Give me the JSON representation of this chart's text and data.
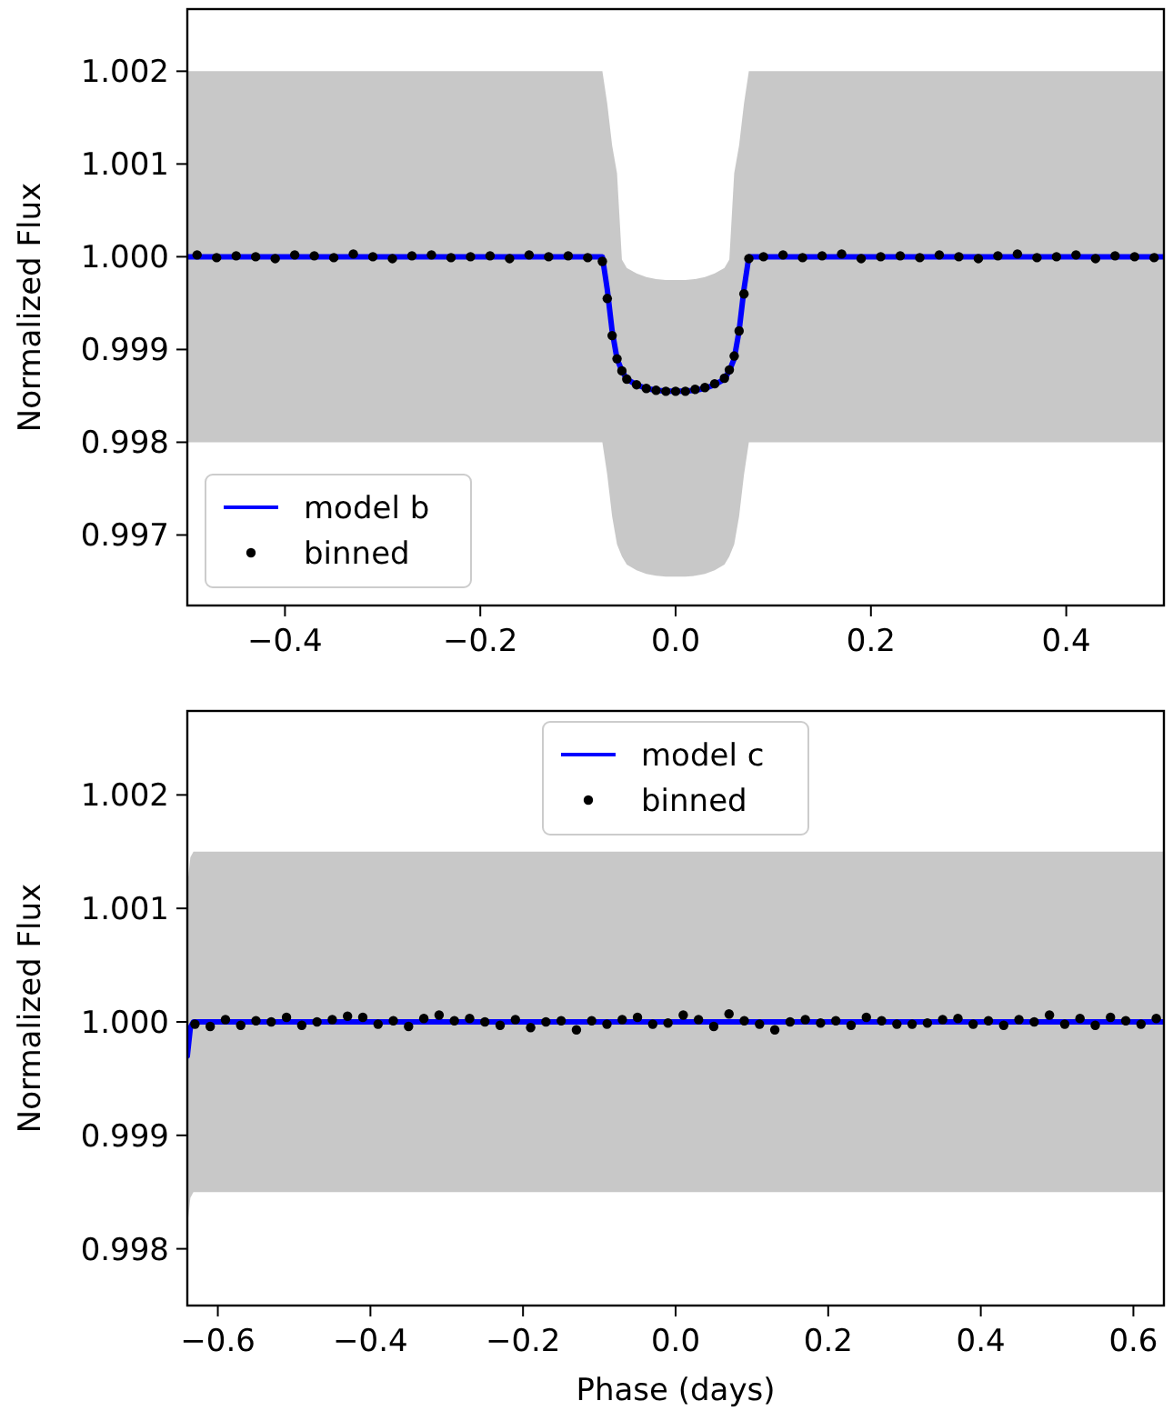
{
  "chart_data": [
    {
      "type": "scatter",
      "ylabel": "Normalized Flux",
      "xlim": [
        -0.5,
        0.5
      ],
      "ylim": [
        0.99624,
        1.00267
      ],
      "xticks": [
        {
          "value": -0.4,
          "label": "−0.4"
        },
        {
          "value": -0.2,
          "label": "−0.2"
        },
        {
          "value": 0,
          "label": "0.0"
        },
        {
          "value": 0.2,
          "label": "0.2"
        },
        {
          "value": 0.4,
          "label": "0.4"
        }
      ],
      "yticks": [
        0.997,
        0.998,
        0.999,
        {
          "value": 1,
          "label": "1.000"
        },
        1.001,
        1.002
      ],
      "grid": false,
      "legend": "bottom left",
      "series": [
        {
          "name": "model b",
          "type": "line",
          "color": "#0000ff",
          "line_style": "solid",
          "x": [
            -0.5,
            -0.075,
            -0.07,
            -0.065,
            -0.06,
            -0.055,
            -0.05,
            -0.04,
            -0.03,
            -0.02,
            -0.01,
            0,
            0.01,
            0.02,
            0.03,
            0.04,
            0.05,
            0.055,
            0.06,
            0.065,
            0.07,
            0.075,
            0.5
          ],
          "values": [
            1,
            1,
            0.99965,
            0.9992,
            0.9989,
            0.99877,
            0.99868,
            0.99862,
            0.99858,
            0.99856,
            0.99855,
            0.99855,
            0.99855,
            0.99856,
            0.99858,
            0.99862,
            0.99868,
            0.99877,
            0.9989,
            0.9992,
            0.99965,
            1,
            1
          ],
          "lower": [
            0.998,
            0.998,
            0.99765,
            0.9972,
            0.9969,
            0.99677,
            0.99668,
            0.99662,
            0.99658,
            0.99656,
            0.99655,
            0.99655,
            0.99655,
            0.99656,
            0.99658,
            0.99662,
            0.99668,
            0.99677,
            0.9969,
            0.9972,
            0.99765,
            0.998,
            0.998
          ],
          "upper": [
            1.002,
            1.002,
            1.00165,
            1.0012,
            1.0009,
            0.99997,
            0.99988,
            0.99982,
            0.99978,
            0.99976,
            0.99975,
            0.99975,
            0.99975,
            0.99976,
            0.99978,
            0.99982,
            0.99988,
            0.99997,
            1.0009,
            1.0012,
            1.00165,
            1.002,
            1.002
          ]
        },
        {
          "name": "binned",
          "marker": "circle",
          "color": "#000000",
          "x": [
            -0.49,
            -0.47,
            -0.45,
            -0.43,
            -0.41,
            -0.39,
            -0.37,
            -0.35,
            -0.33,
            -0.31,
            -0.29,
            -0.27,
            -0.25,
            -0.23,
            -0.21,
            -0.19,
            -0.17,
            -0.15,
            -0.13,
            -0.11,
            -0.09,
            -0.075,
            -0.07,
            -0.065,
            -0.06,
            -0.055,
            -0.05,
            -0.04,
            -0.03,
            -0.02,
            -0.01,
            0,
            0.01,
            0.02,
            0.03,
            0.04,
            0.05,
            0.055,
            0.06,
            0.065,
            0.07,
            0.075,
            0.09,
            0.11,
            0.13,
            0.15,
            0.17,
            0.19,
            0.21,
            0.23,
            0.25,
            0.27,
            0.29,
            0.31,
            0.33,
            0.35,
            0.37,
            0.39,
            0.41,
            0.43,
            0.45,
            0.47,
            0.49
          ],
          "values": [
            1.00002,
            0.99999,
            1.00001,
            1,
            0.99998,
            1.00002,
            1.00001,
            0.99999,
            1.00003,
            1,
            0.99998,
            1.00001,
            1.00002,
            0.99999,
            1,
            1.00001,
            0.99998,
            1.00002,
            1,
            1.00001,
            0.99999,
            0.99995,
            0.99955,
            0.99915,
            0.9989,
            0.99877,
            0.99868,
            0.99862,
            0.99858,
            0.99856,
            0.99855,
            0.99855,
            0.99855,
            0.99857,
            0.99859,
            0.99863,
            0.99869,
            0.99878,
            0.99893,
            0.9992,
            0.9996,
            0.99998,
            1,
            1.00002,
            0.99999,
            1.00001,
            1.00003,
            0.99998,
            1,
            1.00001,
            0.99999,
            1.00002,
            1,
            0.99998,
            1.00001,
            1.00003,
            0.99999,
            1,
            1.00002,
            0.99998,
            1.00001,
            1,
            0.99999
          ]
        }
      ]
    },
    {
      "type": "scatter",
      "xlabel": "Phase (days)",
      "ylabel": "Normalized Flux",
      "xlim": [
        -0.64,
        0.64
      ],
      "ylim": [
        0.9975,
        1.00274
      ],
      "xticks": [
        {
          "value": -0.6,
          "label": "−0.6"
        },
        {
          "value": -0.4,
          "label": "−0.4"
        },
        {
          "value": -0.2,
          "label": "−0.2"
        },
        {
          "value": 0,
          "label": "0.0"
        },
        {
          "value": 0.2,
          "label": "0.2"
        },
        {
          "value": 0.4,
          "label": "0.4"
        },
        {
          "value": 0.6,
          "label": "0.6"
        }
      ],
      "yticks": [
        0.998,
        0.999,
        {
          "value": 1,
          "label": "1.000"
        },
        1.001,
        1.002
      ],
      "grid": false,
      "legend": "top",
      "series": [
        {
          "name": "model c",
          "type": "line",
          "color": "#0000ff",
          "line_style": "solid",
          "x": [
            -0.64,
            -0.636,
            -0.632,
            0.64
          ],
          "values": [
            0.9997,
            0.99995,
            1,
            1
          ],
          "lower": [
            0.9982,
            0.99845,
            0.9985,
            0.9985
          ],
          "upper": [
            1.0012,
            1.00145,
            1.0015,
            1.0015
          ]
        },
        {
          "name": "binned",
          "marker": "circle",
          "color": "#000000",
          "x": [
            -0.63,
            -0.61,
            -0.59,
            -0.57,
            -0.55,
            -0.53,
            -0.51,
            -0.49,
            -0.47,
            -0.45,
            -0.43,
            -0.41,
            -0.39,
            -0.37,
            -0.35,
            -0.33,
            -0.31,
            -0.29,
            -0.27,
            -0.25,
            -0.23,
            -0.21,
            -0.19,
            -0.17,
            -0.15,
            -0.13,
            -0.11,
            -0.09,
            -0.07,
            -0.05,
            -0.03,
            -0.01,
            0.01,
            0.03,
            0.05,
            0.07,
            0.09,
            0.11,
            0.13,
            0.15,
            0.17,
            0.19,
            0.21,
            0.23,
            0.25,
            0.27,
            0.29,
            0.31,
            0.33,
            0.35,
            0.37,
            0.39,
            0.41,
            0.43,
            0.45,
            0.47,
            0.49,
            0.51,
            0.53,
            0.55,
            0.57,
            0.59,
            0.61,
            0.63
          ],
          "values": [
            0.99998,
            0.99996,
            1.00002,
            0.99997,
            1.00001,
            1,
            1.00004,
            0.99997,
            1,
            1.00002,
            1.00005,
            1.00004,
            0.99998,
            1.00001,
            0.99996,
            1.00003,
            1.00006,
            1.00001,
            1.00003,
            1,
            0.99997,
            1.00002,
            0.99995,
            1,
            1.00001,
            0.99993,
            1.00001,
            0.99998,
            1.00002,
            1.00004,
            0.99998,
            0.99999,
            1.00006,
            1.00002,
            0.99996,
            1.00007,
            1.00001,
            0.99998,
            0.99993,
            1,
            1.00002,
            0.99999,
            1.00001,
            0.99997,
            1.00004,
            1.00001,
            0.99998,
            0.99998,
            0.99999,
            1.00002,
            1.00003,
            0.99998,
            1.00001,
            0.99997,
            1.00002,
            1,
            1.00006,
            0.99998,
            1.00003,
            0.99997,
            1.00004,
            1.00001,
            0.99998,
            1.00003
          ]
        }
      ]
    }
  ]
}
